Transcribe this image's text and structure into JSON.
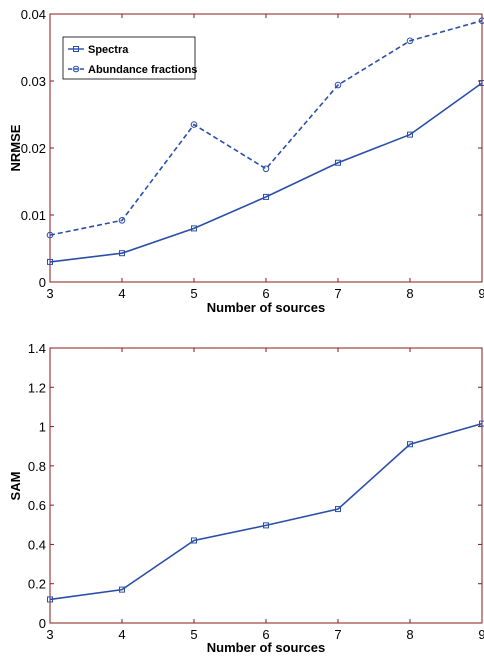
{
  "chart_data": [
    {
      "type": "line",
      "x": [
        3,
        4,
        5,
        6,
        7,
        8,
        9
      ],
      "xlabel": "Number of sources",
      "ylabel": "NRMSE",
      "xlim": [
        3,
        9
      ],
      "ylim": [
        0,
        0.04
      ],
      "xticks": [
        "3",
        "4",
        "5",
        "6",
        "7",
        "8",
        "9"
      ],
      "yticks": [
        "0",
        "0.01",
        "0.02",
        "0.03",
        "0.04"
      ],
      "yticks_values": [
        0,
        0.01,
        0.02,
        0.03,
        0.04
      ],
      "grid": false,
      "legend_position": "top-left",
      "series": [
        {
          "name": "Spectra",
          "values": [
            0.003,
            0.0043,
            0.008,
            0.0127,
            0.0178,
            0.022,
            0.0297
          ],
          "color": "#2b4fa8",
          "style": "solid",
          "marker": "square"
        },
        {
          "name": "Abundance fractions",
          "values": [
            0.007,
            0.0092,
            0.0235,
            0.0169,
            0.0294,
            0.036,
            0.039
          ],
          "color": "#2b4fa8",
          "style": "dashed",
          "marker": "circle"
        }
      ]
    },
    {
      "type": "line",
      "x": [
        3,
        4,
        5,
        6,
        7,
        8,
        9
      ],
      "xlabel": "Number of sources",
      "ylabel": "SAM",
      "xlim": [
        3,
        9
      ],
      "ylim": [
        0,
        1.4
      ],
      "xticks": [
        "3",
        "4",
        "5",
        "6",
        "7",
        "8",
        "9"
      ],
      "yticks": [
        "0",
        "0.2",
        "0.4",
        "0.6",
        "0.8",
        "1",
        "1.2",
        "1.4"
      ],
      "yticks_values": [
        0,
        0.2,
        0.4,
        0.6,
        0.8,
        1,
        1.2,
        1.4
      ],
      "grid": false,
      "series": [
        {
          "values": [
            0.12,
            0.17,
            0.42,
            0.497,
            0.58,
            0.91,
            1.015
          ],
          "color": "#2b4fa8",
          "style": "solid",
          "marker": "square"
        }
      ]
    }
  ]
}
